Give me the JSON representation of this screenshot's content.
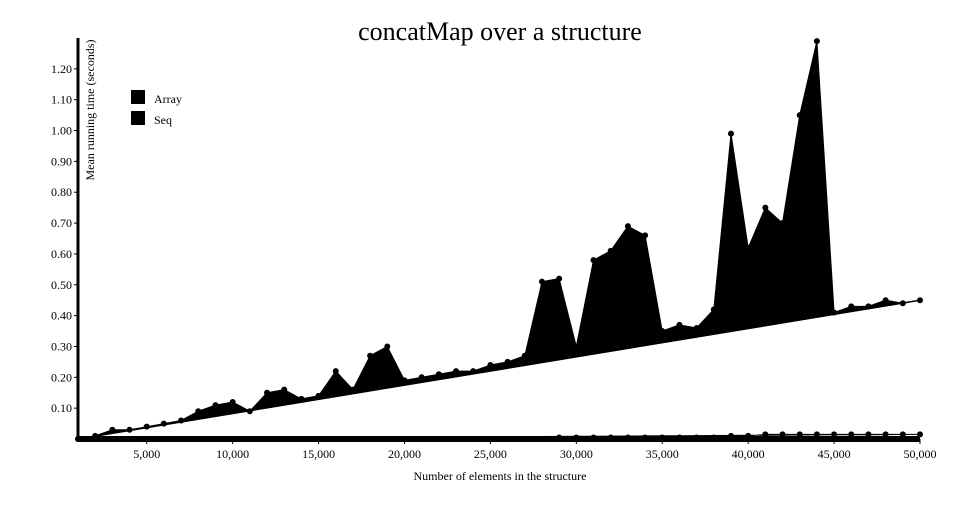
{
  "chart_data": {
    "type": "line",
    "title": "concatMap over a structure",
    "xlabel": "Number of elements in the structure",
    "ylabel": "Mean running time (seconds)",
    "xlim": [
      1000,
      50000
    ],
    "ylim": [
      0,
      1.3
    ],
    "x_ticks": [
      5000,
      10000,
      15000,
      20000,
      25000,
      30000,
      35000,
      40000,
      45000,
      50000
    ],
    "x_tick_labels": [
      "5,000",
      "10,000",
      "15,000",
      "20,000",
      "25,000",
      "30,000",
      "35,000",
      "40,000",
      "45,000",
      "50,000"
    ],
    "y_ticks": [
      0.1,
      0.2,
      0.3,
      0.4,
      0.5,
      0.6,
      0.7,
      0.8,
      0.9,
      1.0,
      1.1,
      1.2
    ],
    "y_tick_labels": [
      "0.10",
      "0.20",
      "0.30",
      "0.40",
      "0.50",
      "0.60",
      "0.70",
      "0.80",
      "0.90",
      "1.00",
      "1.10",
      "1.20"
    ],
    "legend_position": "top-left",
    "grid": false,
    "series": [
      {
        "name": "Array",
        "color": "#000000",
        "x": [
          1000,
          2000,
          3000,
          4000,
          5000,
          6000,
          7000,
          8000,
          9000,
          10000,
          11000,
          12000,
          13000,
          14000,
          15000,
          16000,
          17000,
          18000,
          19000,
          20000,
          21000,
          22000,
          23000,
          24000,
          25000,
          26000,
          27000,
          28000,
          29000,
          30000,
          31000,
          32000,
          33000,
          34000,
          35000,
          36000,
          37000,
          38000,
          39000,
          40000,
          41000,
          42000,
          43000,
          44000,
          45000,
          46000,
          47000,
          48000,
          49000,
          50000
        ],
        "values": [
          0.0,
          0.01,
          0.03,
          0.03,
          0.04,
          0.05,
          0.06,
          0.09,
          0.11,
          0.12,
          0.09,
          0.15,
          0.16,
          0.13,
          0.14,
          0.22,
          0.16,
          0.27,
          0.3,
          0.19,
          0.2,
          0.21,
          0.22,
          0.22,
          0.24,
          0.25,
          0.27,
          0.51,
          0.52,
          0.3,
          0.58,
          0.61,
          0.69,
          0.66,
          0.35,
          0.37,
          0.36,
          0.42,
          0.99,
          0.62,
          0.75,
          0.7,
          1.05,
          1.29,
          0.41,
          0.43,
          0.43,
          0.45,
          0.44,
          0.45
        ]
      },
      {
        "name": "Seq",
        "color": "#000000",
        "x": [
          1000,
          2000,
          3000,
          4000,
          5000,
          6000,
          7000,
          8000,
          9000,
          10000,
          11000,
          12000,
          13000,
          14000,
          15000,
          16000,
          17000,
          18000,
          19000,
          20000,
          21000,
          22000,
          23000,
          24000,
          25000,
          26000,
          27000,
          28000,
          29000,
          30000,
          31000,
          32000,
          33000,
          34000,
          35000,
          36000,
          37000,
          38000,
          39000,
          40000,
          41000,
          42000,
          43000,
          44000,
          45000,
          46000,
          47000,
          48000,
          49000,
          50000
        ],
        "values": [
          0.0,
          0.0,
          0.0,
          0.0,
          0.0,
          0.0,
          0.0,
          0.0,
          0.0,
          0.0,
          0.0,
          0.0,
          0.0,
          0.0,
          0.0,
          0.0,
          0.0,
          0.0,
          0.0,
          0.0,
          0.0,
          0.0,
          0.0,
          0.0,
          0.0,
          0.0,
          0.0,
          0.0,
          0.005,
          0.005,
          0.005,
          0.005,
          0.005,
          0.005,
          0.005,
          0.005,
          0.005,
          0.005,
          0.01,
          0.01,
          0.015,
          0.015,
          0.015,
          0.015,
          0.015,
          0.015,
          0.015,
          0.015,
          0.015,
          0.015
        ]
      }
    ]
  }
}
